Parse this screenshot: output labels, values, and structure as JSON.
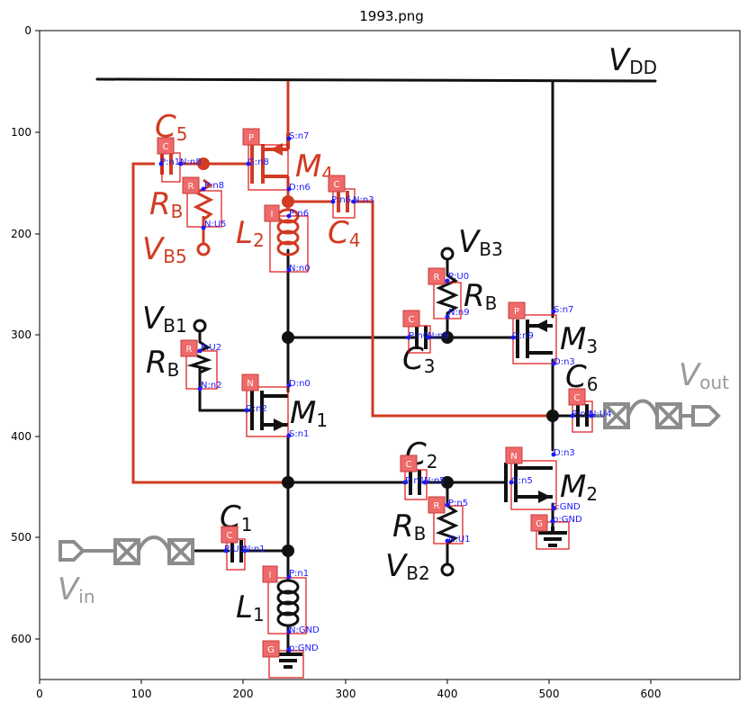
{
  "title": "1993.png",
  "axes": {
    "x_ticks": [
      "0",
      "100",
      "200",
      "300",
      "400",
      "500",
      "600"
    ],
    "y_ticks": [
      "0",
      "100",
      "200",
      "300",
      "400",
      "500",
      "600"
    ]
  },
  "labels": {
    "vdd": "V",
    "vdd_sub": "DD",
    "vb3": "V",
    "vb3_sub": "B3",
    "vb1": "V",
    "vb1_sub": "B1",
    "vb5": "V",
    "vb5_sub": "B5",
    "vb2": "V",
    "vb2_sub": "B2",
    "vout": "V",
    "vout_sub": "out",
    "vin": "V",
    "vin_sub": "in",
    "c5": "C",
    "c5_sub": "5",
    "m4": "M",
    "m4_sub": "4",
    "rb_red": "R",
    "rb_red_sub": "B",
    "l2": "L",
    "l2_sub": "2",
    "c4": "C",
    "c4_sub": "4",
    "rb_top": "R",
    "rb_top_sub": "B",
    "rb_left": "R",
    "rb_left_sub": "B",
    "c3": "C",
    "c3_sub": "3",
    "m3": "M",
    "m3_sub": "3",
    "c6": "C",
    "c6_sub": "6",
    "m1": "M",
    "m1_sub": "1",
    "c2": "C",
    "c2_sub": "2",
    "m2": "M",
    "m2_sub": "2",
    "rb_bot": "R",
    "rb_bot_sub": "B",
    "c1": "C",
    "c1_sub": "1",
    "l1": "L",
    "l1_sub": "1"
  },
  "components": [
    {
      "tag": "C",
      "pins": [
        "P:n1",
        "N:n8"
      ]
    },
    {
      "tag": "P",
      "pins": [
        "S:n7",
        "G:n8",
        "D:n6"
      ]
    },
    {
      "tag": "R",
      "pins": [
        "P:n8",
        "N:U5"
      ]
    },
    {
      "tag": "C",
      "pins": [
        "P:n6",
        "N:n3"
      ]
    },
    {
      "tag": "I",
      "pins": [
        "P:n6",
        "N:n0"
      ]
    },
    {
      "tag": "R",
      "pins": [
        "P:U0",
        "N:n9"
      ]
    },
    {
      "tag": "C",
      "pins": [
        "P:n0",
        "N:n9"
      ]
    },
    {
      "tag": "P",
      "pins": [
        "S:n7",
        "G:n9",
        "D:n3"
      ]
    },
    {
      "tag": "R",
      "pins": [
        "P:U2",
        "N:n2"
      ]
    },
    {
      "tag": "N",
      "pins": [
        "D:n0",
        "G:n2",
        "S:n1"
      ]
    },
    {
      "tag": "C",
      "pins": [
        "P:n3",
        "N:U4"
      ]
    },
    {
      "tag": "C",
      "pins": [
        "P:n1",
        "N:n5"
      ]
    },
    {
      "tag": "N",
      "pins": [
        "D:n3",
        "G:n5",
        "S:GND"
      ]
    },
    {
      "tag": "R",
      "pins": [
        "P:n5",
        "N:U1"
      ]
    },
    {
      "tag": "G",
      "pins": [
        "p:GND"
      ]
    },
    {
      "tag": "C",
      "pins": [
        "P:U3",
        "N:n1"
      ]
    },
    {
      "tag": "I",
      "pins": [
        "P:n1",
        "N:GND"
      ]
    },
    {
      "tag": "G",
      "pins": [
        "p:GND"
      ]
    }
  ]
}
